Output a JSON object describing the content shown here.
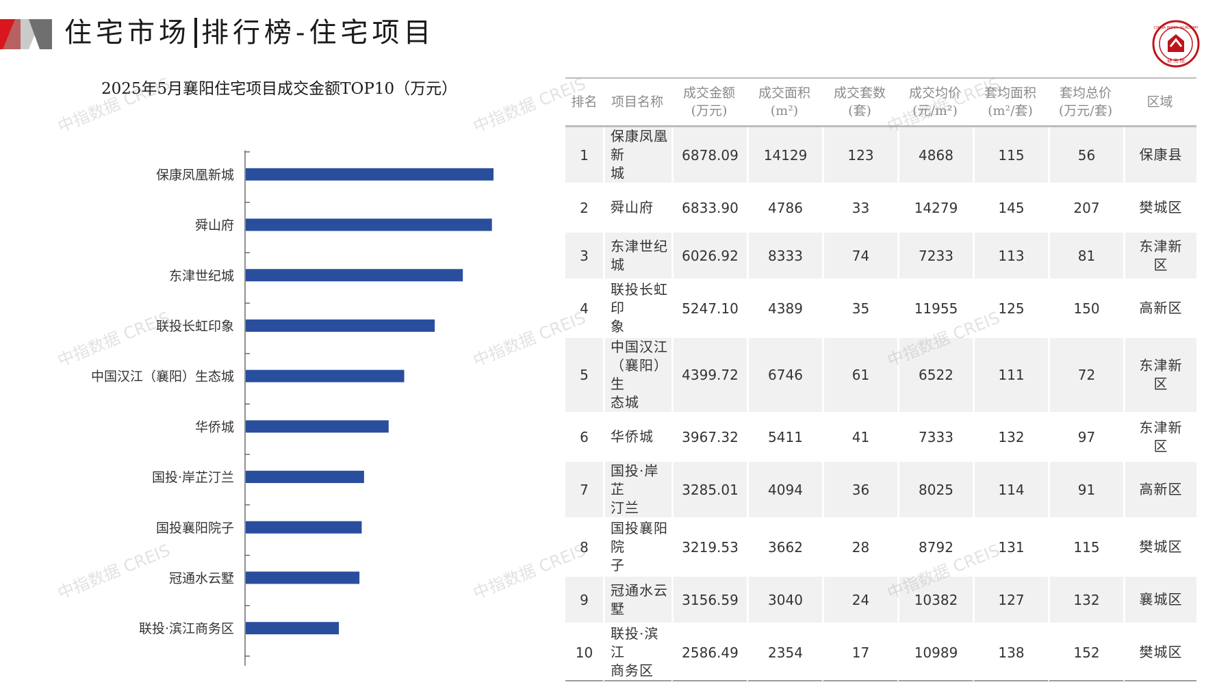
{
  "header": {
    "title_main": "住宅市场",
    "title_sub": "排行榜-住宅项目",
    "accent_color": "#d9161c"
  },
  "watermark_text": "中指数据 CREIS",
  "chart_data": {
    "type": "bar",
    "orientation": "horizontal",
    "title": "2025年5月襄阳住宅项目成交金额TOP10（万元）",
    "categories": [
      "保康凤凰新城",
      "舜山府",
      "东津世纪城",
      "联投长虹印象",
      "中国汉江（襄阳）生态城",
      "华侨城",
      "国投·岸芷汀兰",
      "国投襄阳院子",
      "冠通水云墅",
      "联投·滨江商务区"
    ],
    "values": [
      6878.09,
      6833.9,
      6026.92,
      5247.1,
      4399.72,
      3967.32,
      3285.01,
      3219.53,
      3156.59,
      2586.49
    ],
    "xlim": [
      0,
      6878.09
    ],
    "bar_color": "#2a4e9e",
    "grid": false,
    "legend": "none"
  },
  "table": {
    "headers": [
      [
        "排名"
      ],
      [
        "项目名称"
      ],
      [
        "成交金额",
        "(万元)"
      ],
      [
        "成交面积",
        "(m²)"
      ],
      [
        "成交套数",
        "(套)"
      ],
      [
        "成交均价",
        "(元/m²)"
      ],
      [
        "套均面积",
        "(m²/套)"
      ],
      [
        "套均总价",
        "(万元/套)"
      ],
      [
        "区域"
      ]
    ],
    "rows": [
      {
        "rank": "1",
        "name": [
          "保康凤凰新",
          "城"
        ],
        "amount": "6878.09",
        "area": "14129",
        "units": "123",
        "price": "4868",
        "avg_area": "115",
        "avg_total": "56",
        "district": [
          "保康县"
        ]
      },
      {
        "rank": "2",
        "name": [
          "舜山府"
        ],
        "amount": "6833.90",
        "area": "4786",
        "units": "33",
        "price": "14279",
        "avg_area": "145",
        "avg_total": "207",
        "district": [
          "樊城区"
        ]
      },
      {
        "rank": "3",
        "name": [
          "东津世纪城"
        ],
        "amount": "6026.92",
        "area": "8333",
        "units": "74",
        "price": "7233",
        "avg_area": "113",
        "avg_total": "81",
        "district": [
          "东津新",
          "区"
        ]
      },
      {
        "rank": "4",
        "name": [
          "联投长虹印",
          "象"
        ],
        "amount": "5247.10",
        "area": "4389",
        "units": "35",
        "price": "11955",
        "avg_area": "125",
        "avg_total": "150",
        "district": [
          "高新区"
        ]
      },
      {
        "rank": "5",
        "name": [
          "中国汉江",
          "（襄阳）生",
          "态城"
        ],
        "amount": "4399.72",
        "area": "6746",
        "units": "61",
        "price": "6522",
        "avg_area": "111",
        "avg_total": "72",
        "district": [
          "东津新",
          "区"
        ]
      },
      {
        "rank": "6",
        "name": [
          "华侨城"
        ],
        "amount": "3967.32",
        "area": "5411",
        "units": "41",
        "price": "7333",
        "avg_area": "132",
        "avg_total": "97",
        "district": [
          "东津新",
          "区"
        ]
      },
      {
        "rank": "7",
        "name": [
          "国投·岸芷",
          "汀兰"
        ],
        "amount": "3285.01",
        "area": "4094",
        "units": "36",
        "price": "8025",
        "avg_area": "114",
        "avg_total": "91",
        "district": [
          "高新区"
        ]
      },
      {
        "rank": "8",
        "name": [
          "国投襄阳院",
          "子"
        ],
        "amount": "3219.53",
        "area": "3662",
        "units": "28",
        "price": "8792",
        "avg_area": "131",
        "avg_total": "115",
        "district": [
          "樊城区"
        ]
      },
      {
        "rank": "9",
        "name": [
          "冠通水云墅"
        ],
        "amount": "3156.59",
        "area": "3040",
        "units": "24",
        "price": "10382",
        "avg_area": "127",
        "avg_total": "132",
        "district": [
          "襄城区"
        ]
      },
      {
        "rank": "10",
        "name": [
          "联投·滨江",
          "商务区"
        ],
        "amount": "2586.49",
        "area": "2354",
        "units": "17",
        "price": "10989",
        "avg_area": "138",
        "avg_total": "152",
        "district": [
          "樊城区"
        ]
      }
    ]
  }
}
